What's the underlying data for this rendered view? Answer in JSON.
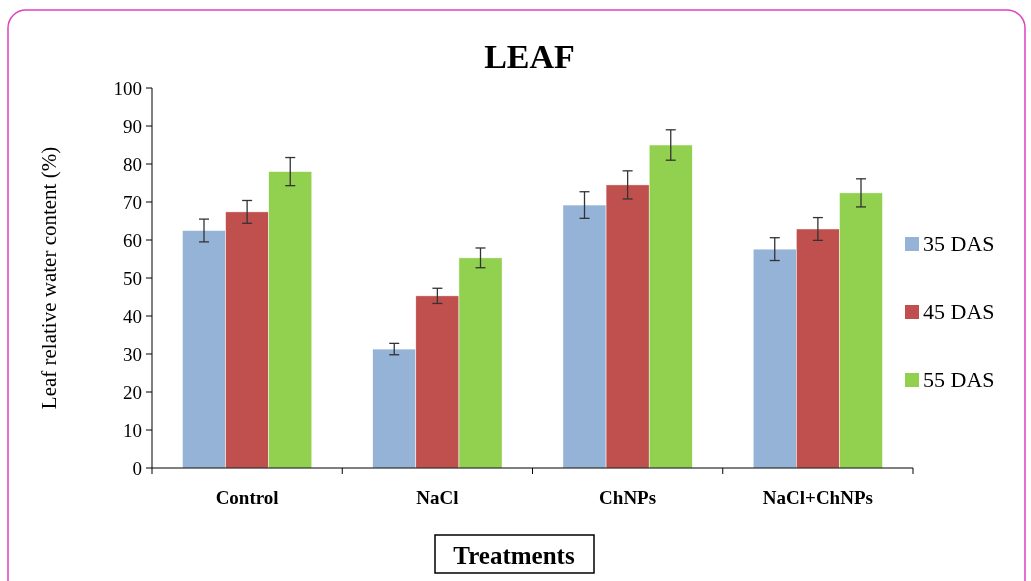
{
  "chart_data": {
    "type": "bar",
    "title": "LEAF",
    "xlabel": "Treatments",
    "ylabel": "Leaf relative water content (%)",
    "categories": [
      "Control",
      "NaCl",
      "ChNPs",
      "NaCl+ChNPs"
    ],
    "series": [
      {
        "name": "35 DAS",
        "color": "#95b3d7",
        "values": [
          62.5,
          31.3,
          69.2,
          57.6
        ],
        "errors": [
          3,
          1.5,
          3.5,
          3
        ]
      },
      {
        "name": "45 DAS",
        "color": "#c0504d",
        "values": [
          67.4,
          45.3,
          74.5,
          62.9
        ],
        "errors": [
          3,
          2,
          3.7,
          3
        ]
      },
      {
        "name": "55 DAS",
        "color": "#92d050",
        "values": [
          78,
          55.3,
          85,
          72.4
        ],
        "errors": [
          3.7,
          2.6,
          4,
          3.7
        ]
      }
    ],
    "ylim": [
      0,
      100
    ],
    "yticks": [
      0,
      10,
      20,
      30,
      40,
      50,
      60,
      70,
      80,
      90,
      100
    ],
    "legend": "right"
  }
}
